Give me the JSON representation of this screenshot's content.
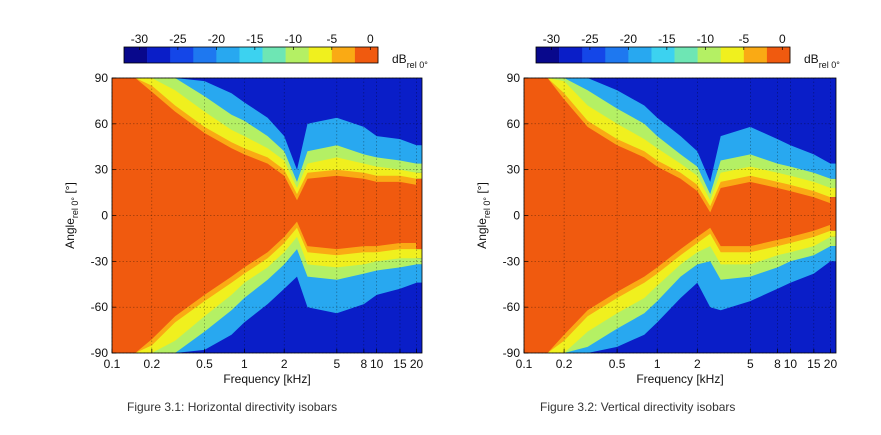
{
  "colorbar": {
    "tick_labels": [
      "-30",
      "-25",
      "-20",
      "-15",
      "-10",
      "-5",
      "0"
    ],
    "unit_main": "dB",
    "unit_sub": "rel 0°",
    "bands": [
      {
        "from": -32,
        "to": -29,
        "color": "#08088c"
      },
      {
        "from": -29,
        "to": -26,
        "color": "#0a1ec8"
      },
      {
        "from": -26,
        "to": -23,
        "color": "#1446e8"
      },
      {
        "from": -23,
        "to": -20,
        "color": "#1e78f0"
      },
      {
        "from": -20,
        "to": -17,
        "color": "#28a8f0"
      },
      {
        "from": -17,
        "to": -14,
        "color": "#3cd2f0"
      },
      {
        "from": -14,
        "to": -11,
        "color": "#6ee6b4"
      },
      {
        "from": -11,
        "to": -8,
        "color": "#b4f064"
      },
      {
        "from": -8,
        "to": -5,
        "color": "#f0f01e"
      },
      {
        "from": -5,
        "to": -2,
        "color": "#faaa14"
      },
      {
        "from": -2,
        "to": 1,
        "color": "#f05a0f"
      }
    ]
  },
  "chart_data": [
    {
      "type": "heatmap",
      "title": "",
      "xlabel": "Frequency [kHz]",
      "ylabel_main": "Angle",
      "ylabel_sub": "rel 0°",
      "ylabel_unit": "[°]",
      "x_scale": "log",
      "xlim": [
        0.1,
        22
      ],
      "ylim": [
        -90,
        90
      ],
      "x_ticks": [
        0.1,
        0.2,
        0.5,
        1,
        2,
        5,
        8,
        10,
        15,
        20
      ],
      "x_tick_labels": [
        "0.1",
        "0.2",
        "0.5",
        "1",
        "2",
        "5",
        "8",
        "10",
        "15",
        "20"
      ],
      "y_ticks": [
        -90,
        -60,
        -30,
        0,
        30,
        60,
        90
      ],
      "y_tick_labels": [
        "-90",
        "-60",
        "-30",
        "0",
        "30",
        "60",
        "90"
      ],
      "grid": true,
      "z_unit": "dB rel 0°",
      "z_range": [
        -32,
        0
      ],
      "isobar_contours": {
        "x": [
          0.1,
          0.15,
          0.2,
          0.3,
          0.5,
          0.8,
          1,
          1.5,
          2,
          2.5,
          3,
          5,
          8,
          10,
          15,
          20
        ],
        "upper": {
          "-3": [
            90,
            90,
            85,
            72,
            58,
            48,
            44,
            38,
            30,
            14,
            28,
            30,
            28,
            26,
            26,
            24
          ],
          "-6": [
            90,
            90,
            90,
            82,
            68,
            56,
            52,
            44,
            36,
            18,
            34,
            38,
            34,
            32,
            30,
            28
          ],
          "-10": [
            90,
            90,
            90,
            90,
            78,
            66,
            62,
            52,
            42,
            22,
            42,
            46,
            40,
            38,
            36,
            34
          ],
          "-20": [
            90,
            90,
            90,
            90,
            88,
            80,
            74,
            64,
            52,
            30,
            60,
            64,
            58,
            52,
            50,
            46
          ]
        },
        "lower": {
          "-3": [
            -90,
            -90,
            -85,
            -70,
            -56,
            -44,
            -38,
            -28,
            -18,
            -8,
            -24,
            -26,
            -24,
            -24,
            -22,
            -22
          ],
          "-6": [
            -90,
            -90,
            -90,
            -82,
            -66,
            -52,
            -44,
            -34,
            -24,
            -14,
            -32,
            -34,
            -32,
            -30,
            -28,
            -28
          ],
          "-10": [
            -90,
            -90,
            -90,
            -90,
            -76,
            -62,
            -54,
            -42,
            -32,
            -22,
            -40,
            -42,
            -38,
            -36,
            -34,
            -32
          ],
          "-20": [
            -90,
            -90,
            -90,
            -90,
            -88,
            -78,
            -70,
            -58,
            -48,
            -40,
            -60,
            -64,
            -58,
            -52,
            -48,
            -44
          ]
        }
      },
      "caption": "Figure 3.1: Horizontal directivity isobars"
    },
    {
      "type": "heatmap",
      "title": "",
      "xlabel": "Frequency [kHz]",
      "ylabel_main": "Angle",
      "ylabel_sub": "rel 0°",
      "ylabel_unit": "[°]",
      "x_scale": "log",
      "xlim": [
        0.1,
        22
      ],
      "ylim": [
        -90,
        90
      ],
      "x_ticks": [
        0.1,
        0.2,
        0.5,
        1,
        2,
        5,
        8,
        10,
        15,
        20
      ],
      "x_tick_labels": [
        "0.1",
        "0.2",
        "0.5",
        "1",
        "2",
        "5",
        "8",
        "10",
        "15",
        "20"
      ],
      "y_ticks": [
        -90,
        -60,
        -30,
        0,
        30,
        60,
        90
      ],
      "y_tick_labels": [
        "-90",
        "-60",
        "-30",
        "0",
        "30",
        "60",
        "90"
      ],
      "grid": true,
      "z_unit": "dB rel 0°",
      "z_range": [
        -32,
        0
      ],
      "isobar_contours": {
        "x": [
          0.1,
          0.15,
          0.2,
          0.3,
          0.5,
          0.8,
          1,
          1.5,
          2,
          2.5,
          3,
          5,
          8,
          10,
          15,
          20
        ],
        "upper": {
          "-3": [
            90,
            90,
            80,
            62,
            50,
            42,
            36,
            28,
            20,
            6,
            22,
            26,
            22,
            20,
            16,
            12
          ],
          "-6": [
            90,
            90,
            88,
            72,
            60,
            50,
            44,
            34,
            26,
            10,
            28,
            32,
            28,
            26,
            22,
            18
          ],
          "-10": [
            90,
            90,
            90,
            82,
            70,
            60,
            52,
            40,
            32,
            14,
            36,
            40,
            34,
            32,
            28,
            24
          ],
          "-20": [
            90,
            90,
            90,
            90,
            82,
            72,
            64,
            52,
            42,
            22,
            52,
            58,
            50,
            46,
            40,
            34
          ]
        },
        "lower": {
          "-3": [
            -90,
            -90,
            -82,
            -66,
            -54,
            -44,
            -38,
            -26,
            -18,
            -12,
            -24,
            -24,
            -20,
            -18,
            -14,
            -10
          ],
          "-6": [
            -90,
            -90,
            -90,
            -76,
            -64,
            -54,
            -46,
            -32,
            -24,
            -20,
            -32,
            -32,
            -26,
            -24,
            -20,
            -14
          ],
          "-10": [
            -90,
            -90,
            -90,
            -86,
            -74,
            -64,
            -56,
            -40,
            -32,
            -30,
            -42,
            -40,
            -34,
            -30,
            -26,
            -20
          ],
          "-20": [
            -90,
            -90,
            -90,
            -90,
            -86,
            -78,
            -70,
            -54,
            -44,
            -60,
            -62,
            -56,
            -48,
            -44,
            -38,
            -30
          ]
        }
      },
      "caption": "Figure 3.2: Vertical directivity isobars"
    }
  ]
}
